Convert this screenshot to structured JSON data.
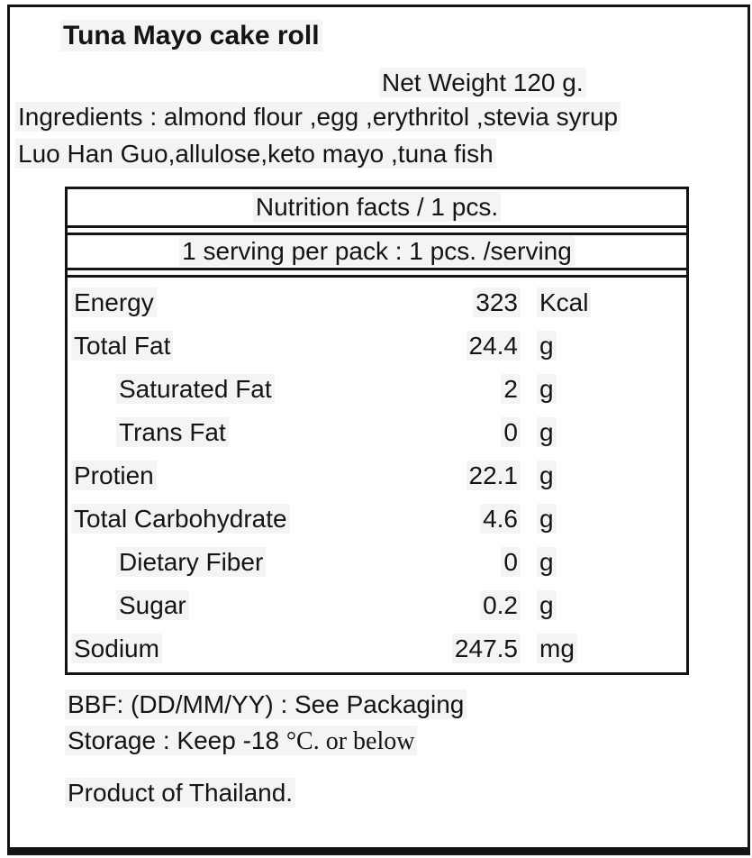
{
  "label": {
    "title": "Tuna Mayo cake roll",
    "net_weight": "Net Weight 120 g.",
    "ingredients_line1": "Ingredients : almond flour ,egg ,erythritol ,stevia syrup",
    "ingredients_line2": "Luo Han Guo,allulose,keto mayo ,tuna fish",
    "footer": {
      "bbf": "BBF: (DD/MM/YY) : See Packaging",
      "storage_prefix": "Storage : Keep -18 ",
      "storage_suffix": "°C. or below",
      "origin": "Product of Thailand."
    }
  },
  "nutrition_table": {
    "header": "Nutrition facts / 1 pcs.",
    "subheader": "1 serving per pack : 1 pcs. /serving",
    "rows": [
      {
        "name": "Energy",
        "value": "323",
        "unit": "Kcal",
        "indent": false
      },
      {
        "name": "Total Fat",
        "value": "24.4",
        "unit": "g",
        "indent": false
      },
      {
        "name": "Saturated Fat",
        "value": "2",
        "unit": "g",
        "indent": true
      },
      {
        "name": "Trans Fat",
        "value": "0",
        "unit": "g",
        "indent": true
      },
      {
        "name": "Protien",
        "value": "22.1",
        "unit": "g",
        "indent": false
      },
      {
        "name": "Total Carbohydrate",
        "value": "4.6",
        "unit": "g",
        "indent": false
      },
      {
        "name": "Dietary Fiber",
        "value": "0",
        "unit": "g",
        "indent": true
      },
      {
        "name": "Sugar",
        "value": "0.2",
        "unit": "g",
        "indent": true
      },
      {
        "name": "Sodium",
        "value": "247.5",
        "unit": "mg",
        "indent": false
      }
    ]
  },
  "colors": {
    "border": "#141414",
    "text": "#141414",
    "background": "#ffffff"
  }
}
